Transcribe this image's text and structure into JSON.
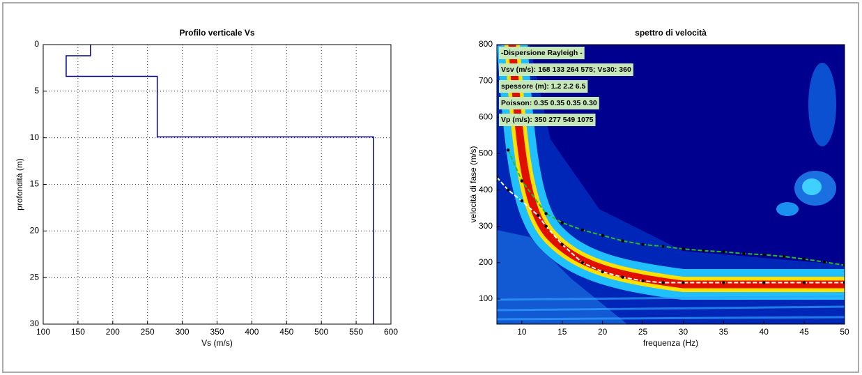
{
  "chart_data": [
    {
      "type": "line",
      "title": "Profilo verticale Vs",
      "x_label": "Vs (m/s)",
      "y_label": "profondità (m)",
      "xlim": [
        100,
        600
      ],
      "xticks": [
        100,
        150,
        200,
        250,
        300,
        350,
        400,
        450,
        500,
        550,
        600
      ],
      "ylim": [
        0,
        30
      ],
      "yticks": [
        0,
        5,
        10,
        15,
        20,
        25,
        30
      ],
      "y_reversed": true,
      "grid": true,
      "series": [
        {
          "color": "#00008b",
          "x": [
            168,
            168,
            133,
            133,
            264,
            264,
            575,
            575
          ],
          "values": [
            0,
            1.2,
            1.2,
            3.4,
            3.4,
            9.9,
            9.9,
            30
          ]
        }
      ]
    },
    {
      "type": "line",
      "title": "spettro di velocità",
      "x_label": "frequenza (Hz)",
      "y_label": "velocità di fase (m/s)",
      "xlim": [
        6.9,
        50
      ],
      "xticks": [
        10,
        15,
        20,
        25,
        30,
        35,
        40,
        45,
        50
      ],
      "ylim": [
        31,
        800
      ],
      "yticks": [
        100,
        200,
        300,
        400,
        500,
        600,
        700,
        800
      ],
      "grid": false,
      "annotations": [
        "-Dispersione Rayleigh -",
        "Vsv (m/s): 168  133  264  575; Vs30: 360",
        "spessore (m): 1.2    2.2    6.5",
        "Poisson: 0.35  0.35  0.35  0.30",
        "Vp (m/s): 350   277   549  1075"
      ],
      "series": [
        {
          "color": "#22c022",
          "dashed": true,
          "markers": true,
          "x": [
            8.3,
            10,
            13,
            15,
            17.5,
            20,
            22.5,
            25,
            27.5,
            30,
            32.5,
            35,
            37.5,
            40,
            42.5,
            45,
            47.5,
            50
          ],
          "values": [
            510,
            425,
            335,
            310,
            290,
            275,
            260,
            250,
            245,
            238,
            233,
            230,
            225,
            222,
            217,
            210,
            202,
            193
          ]
        },
        {
          "color": "#ffffff",
          "dashed": true,
          "markers": true,
          "x": [
            6.9,
            8.3,
            10,
            12,
            13,
            15,
            17.5,
            20,
            22.5,
            25,
            27.5,
            30,
            35,
            40,
            45,
            50
          ],
          "values": [
            435,
            400,
            370,
            330,
            300,
            250,
            200,
            175,
            160,
            150,
            145,
            145,
            145,
            145,
            145,
            145
          ]
        }
      ]
    }
  ]
}
